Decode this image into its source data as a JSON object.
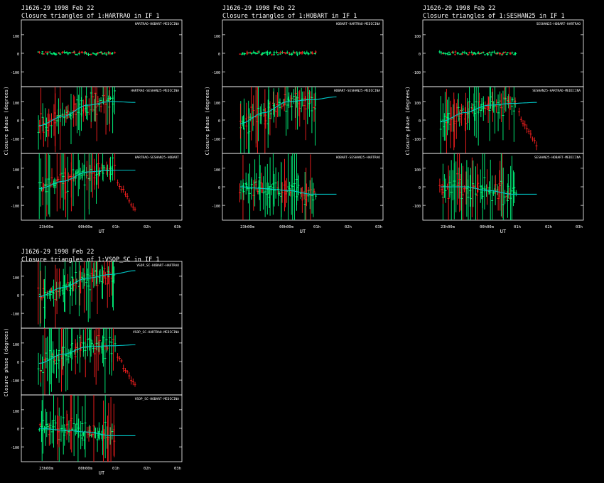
{
  "colors": {
    "background": "#000000",
    "axes": "#ffffff",
    "model": "#00c8c8",
    "green": "#00ff80",
    "red": "#ff2020"
  },
  "chart_data": [
    {
      "type": "scatter",
      "title_line1": "J1626-29   1998 Feb 22",
      "title_line2": "Closure triangles of 1:HARTRAO in IF 1",
      "ylabel": "Closure phase   (degrees)",
      "xlabel": "UT",
      "xticks": [
        "23h00m",
        "00h00m",
        "01h",
        "02h",
        "03h"
      ],
      "ylim": [
        -180,
        180
      ],
      "yticks": [
        "100",
        "0",
        "-100"
      ],
      "panels": [
        {
          "label": "HARTRAO-HOBART-MEDICINA",
          "scatter": "low"
        },
        {
          "label": "HARTRAO-SESHAN25-MEDICINA",
          "model": [
            -30,
            20,
            80,
            100,
            95
          ],
          "scatter": "high"
        },
        {
          "label": "HARTRAO-SESHAN25-HOBART",
          "model": [
            -10,
            30,
            80,
            90,
            90
          ],
          "scatter": "high",
          "tail": true
        }
      ]
    },
    {
      "type": "scatter",
      "title_line1": "J1626-29   1998 Feb 22",
      "title_line2": "Closure triangles of 1:HOBART in IF 1",
      "ylabel": "Closure phase   (degrees)",
      "xlabel": "UT",
      "xticks": [
        "23h00m",
        "00h00m",
        "01h",
        "02h",
        "03h"
      ],
      "ylim": [
        -180,
        180
      ],
      "yticks": [
        "100",
        "0",
        "-100"
      ],
      "panels": [
        {
          "label": "HOBART-HARTRAO-MEDICINA",
          "scatter": "low"
        },
        {
          "label": "HOBART-SESHAN25-MEDICINA",
          "model": [
            -20,
            40,
            100,
            110,
            125
          ],
          "scatter": "high"
        },
        {
          "label": "HOBART-SESHAN25-HARTRAO",
          "model": [
            0,
            -10,
            -20,
            -40,
            -40
          ],
          "scatter": "high"
        }
      ]
    },
    {
      "type": "scatter",
      "title_line1": "J1626-29   1998 Feb 22",
      "title_line2": "Closure triangles of 1:SESHAN25 in IF 1",
      "ylabel": "Closure phase   (degrees)",
      "xlabel": "UT",
      "xticks": [
        "23h00m",
        "00h00m",
        "01h",
        "02h",
        "03h"
      ],
      "ylim": [
        -180,
        180
      ],
      "yticks": [
        "100",
        "0",
        "-100"
      ],
      "panels": [
        {
          "label": "SESHAN25-HOBART-HARTRAO",
          "scatter": "low"
        },
        {
          "label": "SESHAN25-HARTRAO-MEDICINA",
          "model": [
            -10,
            40,
            80,
            90,
            95
          ],
          "scatter": "high",
          "tail": true
        },
        {
          "label": "SESHAN25-HOBART-MEDICINA",
          "model": [
            0,
            0,
            -20,
            -40,
            -40
          ],
          "scatter": "high"
        }
      ]
    },
    {
      "type": "scatter",
      "title_line1": "J1626-29   1998 Feb 22",
      "title_line2": "Closure triangles of 1:VSOP_SC in IF 1",
      "ylabel": "Closure phase   (degrees)",
      "xlabel": "UT",
      "xticks": [
        "23h00m",
        "00h00m",
        "01h",
        "02h",
        "03h"
      ],
      "ylim": [
        -180,
        180
      ],
      "yticks": [
        "100",
        "0",
        "-100"
      ],
      "panels": [
        {
          "label": "VSOP_SC-HOBART-HARTRAO",
          "model": [
            -10,
            40,
            90,
            110,
            130
          ],
          "scatter": "high"
        },
        {
          "label": "VSOP_SC-HARTRAO-MEDICINA",
          "model": [
            -10,
            40,
            80,
            85,
            90
          ],
          "scatter": "high",
          "tail": true
        },
        {
          "label": "VSOP_SC-HOBART-MEDICINA",
          "model": [
            0,
            -10,
            -20,
            -40,
            -40
          ],
          "scatter": "high"
        }
      ]
    }
  ]
}
